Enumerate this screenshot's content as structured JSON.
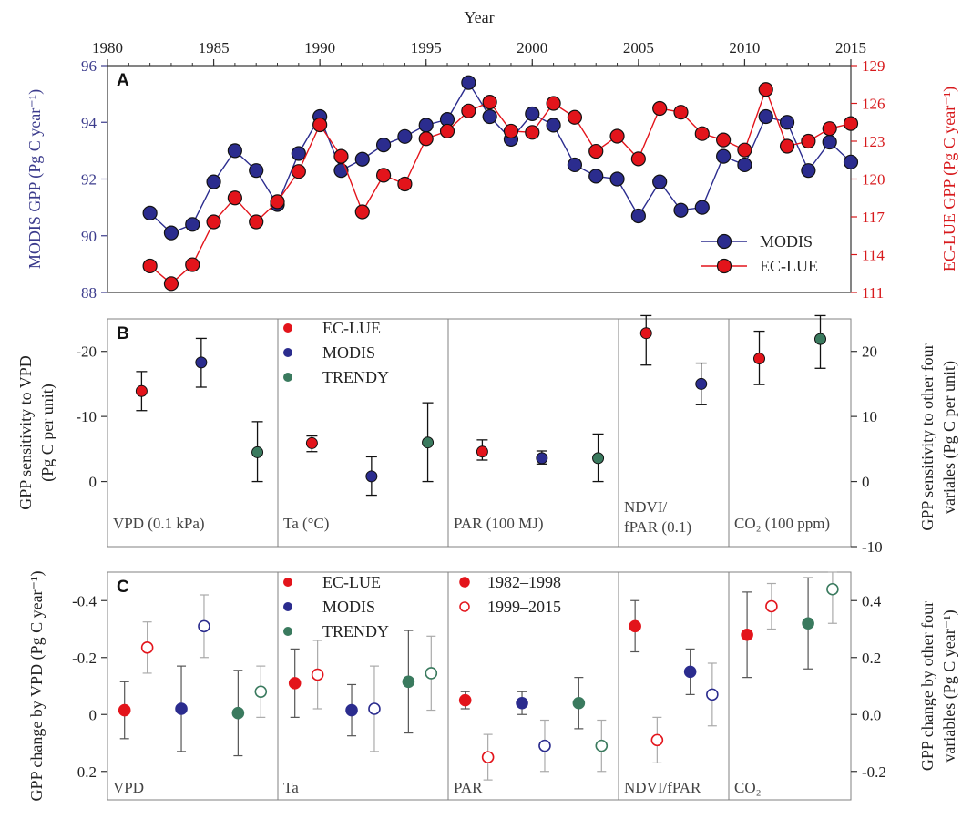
{
  "colors": {
    "ec_lue": "#e3141b",
    "modis": "#2b2c8e",
    "trendy": "#3a7a5e",
    "axis_left_a": "#3b3b8c",
    "axis_right_a": "#d7191c",
    "frame": "#808080"
  },
  "chart_data": [
    {
      "type": "line",
      "panel_letter": "A",
      "xlabel": "Year",
      "x_ticks": [
        "1980",
        "1985",
        "1990",
        "1995",
        "2000",
        "2005",
        "2010",
        "2015"
      ],
      "xlim": [
        1980,
        2015
      ],
      "ylabel_left": "MODIS GPP (Pg C year⁻¹)",
      "ylabel_right": "EC-LUE GPP (Pg C year⁻¹)",
      "y_left_ticks": [
        "88",
        "90",
        "92",
        "94",
        "96"
      ],
      "y_left_lim": [
        88,
        96
      ],
      "y_right_ticks": [
        "111",
        "114",
        "117",
        "120",
        "123",
        "126",
        "129"
      ],
      "y_right_lim": [
        111,
        129
      ],
      "legend_position": "bottom-right",
      "x": [
        1982,
        1983,
        1984,
        1985,
        1986,
        1987,
        1988,
        1989,
        1990,
        1991,
        1992,
        1993,
        1994,
        1995,
        1996,
        1997,
        1998,
        1999,
        2000,
        2001,
        2002,
        2003,
        2004,
        2005,
        2006,
        2007,
        2008,
        2009,
        2010,
        2011,
        2012,
        2013,
        2014,
        2015
      ],
      "series": [
        {
          "name": "MODIS",
          "axis": "left",
          "values": [
            90.8,
            90.1,
            90.4,
            91.9,
            93.0,
            92.3,
            91.1,
            92.9,
            94.2,
            92.3,
            92.7,
            93.2,
            93.5,
            93.9,
            94.1,
            95.4,
            94.2,
            93.4,
            94.3,
            93.9,
            92.5,
            92.1,
            92.0,
            90.7,
            91.9,
            90.9,
            91.0,
            92.8,
            92.5,
            94.2,
            94.0,
            92.3,
            93.3,
            92.6
          ]
        },
        {
          "name": "EC-LUE",
          "axis": "right",
          "values": [
            113.1,
            111.7,
            113.2,
            116.6,
            118.5,
            116.6,
            118.2,
            120.6,
            124.3,
            121.8,
            117.4,
            120.3,
            119.6,
            123.2,
            123.8,
            125.4,
            126.1,
            123.8,
            123.7,
            126.0,
            124.9,
            122.2,
            123.4,
            121.6,
            125.6,
            125.3,
            123.6,
            123.1,
            122.3,
            127.1,
            122.6,
            123.0,
            124.0,
            124.4
          ]
        }
      ]
    },
    {
      "type": "scatter",
      "panel_letter": "B",
      "ylabel_left": "GPP sensitivity to VPD\n(Pg C per unit)",
      "ylabel_right": "GPP sensitivity to other four\nvariales (Pg C per unit)",
      "y_left_ticks": [
        "-20",
        "-10",
        "0"
      ],
      "y_left_lim_inverted": [
        -25,
        10
      ],
      "y_right_ticks": [
        "20",
        "10",
        "0",
        "-10"
      ],
      "y_right_lim": [
        -10,
        25
      ],
      "legend": [
        "EC-LUE",
        "MODIS",
        "TRENDY"
      ],
      "panels": [
        {
          "label": "VPD (0.1 kPa)",
          "axis": "left",
          "points": [
            {
              "model": "EC-LUE",
              "value": -13.9,
              "err_low": -10.9,
              "err_high": -16.9
            },
            {
              "model": "MODIS",
              "value": -18.3,
              "err_low": -14.5,
              "err_high": -22.0
            },
            {
              "model": "TRENDY",
              "value": -4.5,
              "err_low": 0.0,
              "err_high": -9.2
            }
          ]
        },
        {
          "label": "Ta (°C)",
          "axis": "right",
          "points": [
            {
              "model": "EC-LUE",
              "value": 5.9,
              "err_low": 4.6,
              "err_high": 7.0
            },
            {
              "model": "MODIS",
              "value": 0.8,
              "err_low": -2.1,
              "err_high": 3.8
            },
            {
              "model": "TRENDY",
              "value": 6.0,
              "err_low": 0.0,
              "err_high": 12.1
            }
          ]
        },
        {
          "label": "PAR (100 MJ)",
          "axis": "right",
          "points": [
            {
              "model": "EC-LUE",
              "value": 4.6,
              "err_low": 3.3,
              "err_high": 6.4
            },
            {
              "model": "MODIS",
              "value": 3.6,
              "err_low": 2.7,
              "err_high": 4.7
            },
            {
              "model": "TRENDY",
              "value": 3.6,
              "err_low": 0.0,
              "err_high": 7.3
            }
          ]
        },
        {
          "label": "NDVI/\nfPAR (0.1)",
          "axis": "right",
          "points": [
            {
              "model": "EC-LUE",
              "value": 22.8,
              "err_low": 17.9,
              "err_high": 25.5
            },
            {
              "model": "MODIS",
              "value": 15.0,
              "err_low": 11.8,
              "err_high": 18.2
            }
          ]
        },
        {
          "label": "CO₂ (100 ppm)",
          "axis": "right",
          "points": [
            {
              "model": "EC-LUE",
              "value": 18.9,
              "err_low": 14.9,
              "err_high": 23.1
            },
            {
              "model": "TRENDY",
              "value": 21.9,
              "err_low": 17.4,
              "err_high": 25.5
            }
          ]
        }
      ]
    },
    {
      "type": "scatter",
      "panel_letter": "C",
      "ylabel_left": "GPP change by VPD (Pg C year⁻¹)",
      "ylabel_right": "GPP change by other four\nvariables (Pg C year⁻¹)",
      "y_left_ticks": [
        "-0.4",
        "-0.2",
        "0",
        "0.2"
      ],
      "y_left_lim_inverted": [
        -0.5,
        0.3
      ],
      "y_right_ticks": [
        "0.4",
        "0.2",
        "0.0",
        "-0.2"
      ],
      "y_right_lim": [
        -0.3,
        0.5
      ],
      "legend_models": [
        "EC-LUE",
        "MODIS",
        "TRENDY"
      ],
      "legend_periods": [
        "1982–1998",
        "1999–2015"
      ],
      "panels": [
        {
          "label": "VPD",
          "axis": "left",
          "points": [
            {
              "model": "EC-LUE",
              "period": "1982–1998",
              "value": -0.015,
              "err_low": 0.085,
              "err_high": -0.115
            },
            {
              "model": "EC-LUE",
              "period": "1999–2015",
              "value": -0.235,
              "err_low": -0.145,
              "err_high": -0.325
            },
            {
              "model": "MODIS",
              "period": "1982–1998",
              "value": -0.02,
              "err_low": 0.13,
              "err_high": -0.17
            },
            {
              "model": "MODIS",
              "period": "1999–2015",
              "value": -0.31,
              "err_low": -0.2,
              "err_high": -0.42
            },
            {
              "model": "TRENDY",
              "period": "1982–1998",
              "value": -0.005,
              "err_low": 0.145,
              "err_high": -0.155
            },
            {
              "model": "TRENDY",
              "period": "1999–2015",
              "value": -0.08,
              "err_low": 0.01,
              "err_high": -0.17
            }
          ]
        },
        {
          "label": "Ta",
          "axis": "right",
          "points": [
            {
              "model": "EC-LUE",
              "period": "1982–1998",
              "value": 0.11,
              "err_low": -0.01,
              "err_high": 0.23
            },
            {
              "model": "EC-LUE",
              "period": "1999–2015",
              "value": 0.14,
              "err_low": 0.02,
              "err_high": 0.26
            },
            {
              "model": "MODIS",
              "period": "1982–1998",
              "value": 0.015,
              "err_low": -0.075,
              "err_high": 0.105
            },
            {
              "model": "MODIS",
              "period": "1999–2015",
              "value": 0.02,
              "err_low": -0.13,
              "err_high": 0.17
            },
            {
              "model": "TRENDY",
              "period": "1982–1998",
              "value": 0.115,
              "err_low": -0.065,
              "err_high": 0.295
            },
            {
              "model": "TRENDY",
              "period": "1999–2015",
              "value": 0.145,
              "err_low": 0.015,
              "err_high": 0.275
            }
          ]
        },
        {
          "label": "PAR",
          "axis": "right",
          "points": [
            {
              "model": "EC-LUE",
              "period": "1982–1998",
              "value": 0.05,
              "err_low": 0.02,
              "err_high": 0.08
            },
            {
              "model": "EC-LUE",
              "period": "1999–2015",
              "value": -0.15,
              "err_low": -0.23,
              "err_high": -0.07
            },
            {
              "model": "MODIS",
              "period": "1982–1998",
              "value": 0.04,
              "err_low": 0.0,
              "err_high": 0.08
            },
            {
              "model": "MODIS",
              "period": "1999–2015",
              "value": -0.11,
              "err_low": -0.2,
              "err_high": -0.02
            },
            {
              "model": "TRENDY",
              "period": "1982–1998",
              "value": 0.04,
              "err_low": -0.05,
              "err_high": 0.13
            },
            {
              "model": "TRENDY",
              "period": "1999–2015",
              "value": -0.11,
              "err_low": -0.2,
              "err_high": -0.02
            }
          ]
        },
        {
          "label": "NDVI/fPAR",
          "axis": "right",
          "points": [
            {
              "model": "EC-LUE",
              "period": "1982–1998",
              "value": 0.31,
              "err_low": 0.22,
              "err_high": 0.4
            },
            {
              "model": "EC-LUE",
              "period": "1999–2015",
              "value": -0.09,
              "err_low": -0.17,
              "err_high": -0.01
            },
            {
              "model": "MODIS",
              "period": "1982–1998",
              "value": 0.15,
              "err_low": 0.07,
              "err_high": 0.23
            },
            {
              "model": "MODIS",
              "period": "1999–2015",
              "value": 0.07,
              "err_low": -0.04,
              "err_high": 0.18
            }
          ]
        },
        {
          "label": "CO₂",
          "axis": "right",
          "points": [
            {
              "model": "EC-LUE",
              "period": "1982–1998",
              "value": 0.28,
              "err_low": 0.13,
              "err_high": 0.43
            },
            {
              "model": "EC-LUE",
              "period": "1999–2015",
              "value": 0.38,
              "err_low": 0.3,
              "err_high": 0.46
            },
            {
              "model": "TRENDY",
              "period": "1982–1998",
              "value": 0.32,
              "err_low": 0.16,
              "err_high": 0.48
            },
            {
              "model": "TRENDY",
              "period": "1999–2015",
              "value": 0.44,
              "err_low": 0.32,
              "err_high": 0.5
            }
          ]
        }
      ]
    }
  ]
}
